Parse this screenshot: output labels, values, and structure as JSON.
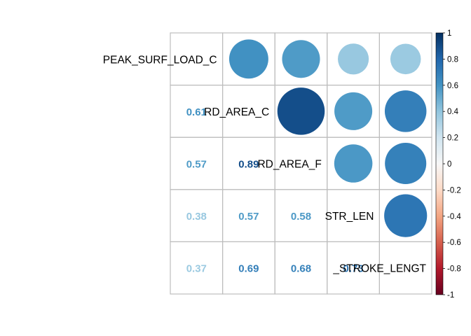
{
  "chart_data": {
    "type": "heatmap",
    "variables": [
      "PEAK_SURF_LOAD_C",
      "RD_AREA_C",
      "RD_AREA_F",
      "STR_LEN",
      "_STROKE_LENGT"
    ],
    "matrix": [
      [
        1.0,
        0.61,
        0.57,
        0.38,
        0.37
      ],
      [
        0.61,
        1.0,
        0.89,
        0.57,
        0.69
      ],
      [
        0.57,
        0.89,
        1.0,
        0.58,
        0.68
      ],
      [
        0.38,
        0.57,
        0.58,
        1.0,
        0.73
      ],
      [
        0.37,
        0.69,
        0.68,
        0.73,
        1.0
      ]
    ],
    "upper_method": "circle",
    "lower_method": "number",
    "colorbar": {
      "range": [
        -1,
        1
      ],
      "ticks": [
        "1",
        "0.8",
        "0.6",
        "0.4",
        "0.2",
        "0",
        "-0.2",
        "-0.4",
        "-0.6",
        "-0.8",
        "-1"
      ]
    }
  }
}
